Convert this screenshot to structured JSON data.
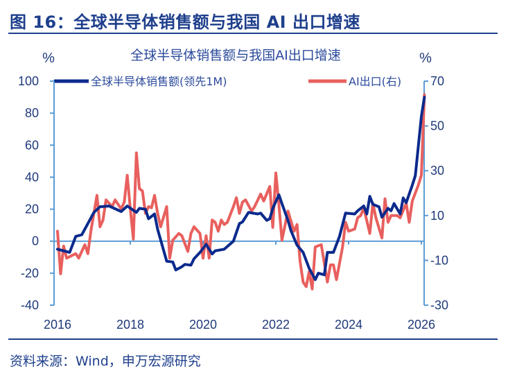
{
  "figure": {
    "title": "图 16：全球半导体销售额与我国 AI 出口增速",
    "source": "资料来源：Wind，申万宏源研究"
  },
  "colors": {
    "semiconductor": "#0b2a8c",
    "ai_export": "#e8605e",
    "axis": "#5b9bd5",
    "heading": "#1e3f8c"
  },
  "chart_data": {
    "type": "line",
    "title": "全球半导体销售额与我国AI出口增速",
    "ylabel_left": "%",
    "ylabel_right": "%",
    "ylim_left": [
      -40,
      100
    ],
    "ylim_right": [
      -30,
      70
    ],
    "yticks_left": [
      "100",
      "80",
      "60",
      "40",
      "20",
      "0",
      "-20",
      "-40"
    ],
    "yticks_right": [
      "70",
      "50",
      "30",
      "10",
      "-10",
      "-30"
    ],
    "xticks": [
      "2016",
      "2018",
      "2020",
      "2022",
      "2024",
      "2026"
    ],
    "xlim": [
      "2016-01",
      "2026-03"
    ],
    "grid": false,
    "legend": "top",
    "series": [
      {
        "name": "全球半导体销售额(领先1M)",
        "axis": "left",
        "x": [
          "2016-01",
          "2016-05",
          "2016-07",
          "2016-09",
          "2016-11",
          "2017-01",
          "2017-03",
          "2017-06",
          "2017-10",
          "2017-12",
          "2018-03",
          "2018-04",
          "2018-06",
          "2018-07",
          "2018-09",
          "2018-10",
          "2019-01",
          "2019-03",
          "2019-04",
          "2019-06",
          "2019-07",
          "2019-09",
          "2019-10",
          "2019-12",
          "2020-02",
          "2020-03",
          "2020-04",
          "2020-05",
          "2020-08",
          "2020-11",
          "2021-01",
          "2021-02",
          "2021-03",
          "2021-04",
          "2021-07",
          "2021-08",
          "2021-10",
          "2021-11",
          "2021-12",
          "2022-02",
          "2022-03",
          "2022-05",
          "2022-06",
          "2022-08",
          "2022-10",
          "2022-12",
          "2023-02",
          "2023-03",
          "2023-05",
          "2023-06",
          "2023-08",
          "2023-10",
          "2023-12",
          "2024-03",
          "2024-04",
          "2024-06",
          "2024-07",
          "2024-08",
          "2024-09",
          "2024-11",
          "2024-12",
          "2025-02",
          "2025-03",
          "2025-04",
          "2025-06",
          "2025-07",
          "2025-08",
          "2025-10",
          "2025-11",
          "2026-01",
          "2026-02"
        ],
        "y": [
          -5,
          -7,
          3,
          4,
          11,
          18,
          21.5,
          22,
          18.5,
          22,
          18,
          20.5,
          20,
          14,
          17,
          7.5,
          -12.5,
          -13,
          -18,
          -16,
          -14.5,
          -15,
          -11,
          -7,
          -2,
          -5,
          -8,
          -6,
          -5,
          0,
          11,
          12,
          15,
          18,
          17,
          17.5,
          13,
          14,
          20.5,
          29,
          23.5,
          13,
          6.5,
          -2.5,
          -7,
          -17,
          -24,
          -20,
          -21,
          -7,
          -7,
          3,
          17.5,
          17,
          19,
          22,
          17,
          28,
          23,
          21.5,
          15,
          20.5,
          19,
          23.5,
          17,
          27,
          24,
          35,
          41,
          78,
          90
        ]
      },
      {
        "name": "AI出口(右)",
        "axis": "right",
        "x": [
          "2016-01",
          "2016-02",
          "2016-03",
          "2016-04",
          "2016-07",
          "2016-08",
          "2016-10",
          "2016-11",
          "2016-12",
          "2017-02",
          "2017-03",
          "2017-04",
          "2017-05",
          "2017-07",
          "2017-08",
          "2017-10",
          "2017-11",
          "2017-12",
          "2018-01",
          "2018-02",
          "2018-03",
          "2018-04",
          "2018-05",
          "2018-06",
          "2018-07",
          "2018-08",
          "2018-09",
          "2018-10",
          "2018-11",
          "2019-01",
          "2019-02",
          "2019-03",
          "2019-05",
          "2019-06",
          "2019-08",
          "2019-09",
          "2019-10",
          "2019-12",
          "2020-01",
          "2020-02",
          "2020-03",
          "2020-04",
          "2020-05",
          "2020-06",
          "2020-07",
          "2020-08",
          "2020-09",
          "2020-11",
          "2020-12",
          "2021-01",
          "2021-02",
          "2021-03",
          "2021-05",
          "2021-06",
          "2021-08",
          "2021-09",
          "2021-11",
          "2021-12",
          "2022-01",
          "2022-02",
          "2022-03",
          "2022-05",
          "2022-07",
          "2022-08",
          "2022-09",
          "2022-10",
          "2022-11",
          "2022-12",
          "2023-01",
          "2023-02",
          "2023-04",
          "2023-06",
          "2023-07",
          "2023-08",
          "2023-09",
          "2023-11",
          "2023-12",
          "2024-01",
          "2024-03",
          "2024-04",
          "2024-05",
          "2024-06",
          "2024-08",
          "2024-09",
          "2024-10",
          "2024-12",
          "2025-01",
          "2025-02",
          "2025-03",
          "2025-05",
          "2025-06",
          "2025-08",
          "2025-09",
          "2025-10",
          "2025-12",
          "2026-01",
          "2026-02"
        ],
        "y": [
          3,
          -16,
          -3.6,
          -9,
          -7,
          -9,
          -3,
          -7,
          3,
          19,
          5,
          8,
          17,
          14,
          17,
          13,
          16,
          28,
          13,
          -0.5,
          38,
          22,
          21,
          11,
          14,
          13.5,
          19,
          11,
          5,
          14,
          -9,
          -1,
          2,
          1,
          -6,
          2,
          5,
          2,
          -9,
          1,
          -9,
          8,
          7,
          3,
          8,
          6,
          7,
          14,
          18,
          11,
          16,
          17,
          12,
          14,
          19.6,
          16.5,
          23,
          4.7,
          29,
          15,
          -1,
          12,
          3,
          6,
          -10.5,
          -19.7,
          -21.7,
          -15,
          -22.8,
          -4,
          -3,
          -19.7,
          -12,
          -12,
          -18.6,
          -4,
          7,
          3,
          4,
          9,
          10,
          13.4,
          2,
          15.5,
          9,
          0,
          17.5,
          7,
          10,
          10,
          9,
          15.5,
          7,
          16.5,
          23.6,
          28,
          64
        ]
      }
    ]
  }
}
